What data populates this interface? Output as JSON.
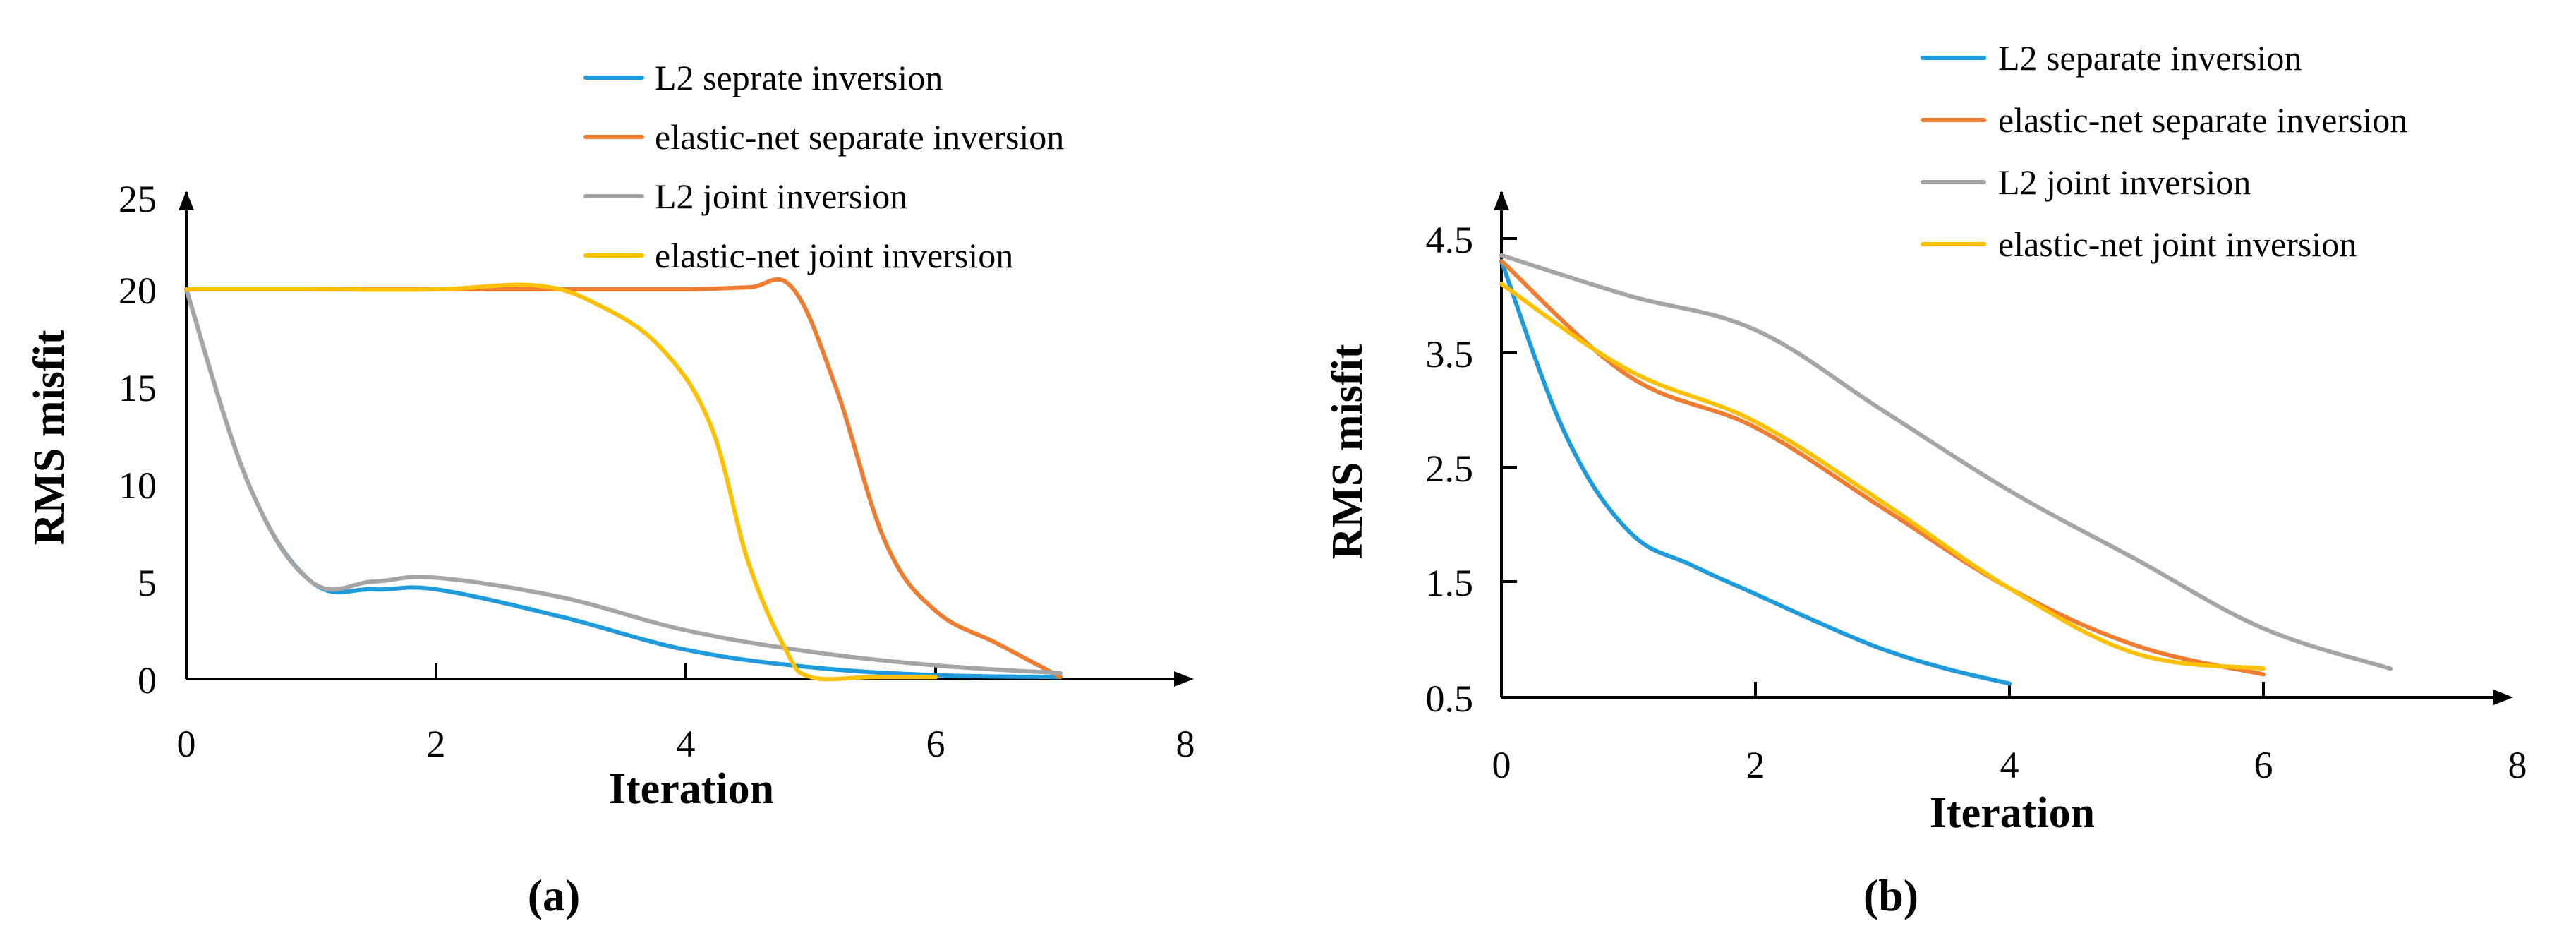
{
  "colors": {
    "l2_separate": "#1f9bdc",
    "enet_separate": "#ee7d31",
    "l2_joint": "#a5a5a5",
    "enet_joint": "#ffc000"
  },
  "chart_data": [
    {
      "type": "line",
      "panel_label": "(a)",
      "title": "",
      "xlabel": "Iteration",
      "ylabel": "RMS misfit",
      "xlim": [
        0,
        8
      ],
      "ylim": [
        0,
        25
      ],
      "xticks": [
        "0",
        "2",
        "4",
        "6",
        "8"
      ],
      "yticks": [
        "0",
        "5",
        "10",
        "15",
        "20",
        "25"
      ],
      "legend_position": "top-right",
      "series": [
        {
          "name": "L2 seprate inversion",
          "color_key": "l2_separate",
          "x": [
            0,
            0.5,
            1,
            1.5,
            2,
            3,
            4,
            5,
            6,
            7
          ],
          "y": [
            20,
            10,
            5,
            4.6,
            4.6,
            3.2,
            1.5,
            0.6,
            0.2,
            0.1
          ]
        },
        {
          "name": "elastic-net separate inversion",
          "color_key": "enet_separate",
          "x": [
            0,
            1,
            2,
            3,
            4,
            4.5,
            4.85,
            5.2,
            5.6,
            6,
            6.5,
            7
          ],
          "y": [
            20,
            20,
            20,
            20,
            20,
            20.1,
            20.1,
            15,
            7,
            3.5,
            1.8,
            0.1
          ]
        },
        {
          "name": "L2 joint inversion",
          "color_key": "l2_joint",
          "x": [
            0,
            0.5,
            1,
            1.5,
            2,
            3,
            4,
            5,
            6,
            7
          ],
          "y": [
            20,
            10,
            5,
            5,
            5.2,
            4.2,
            2.5,
            1.4,
            0.7,
            0.3
          ]
        },
        {
          "name": "elastic-net joint inversion",
          "color_key": "enet_joint",
          "x": [
            0,
            1,
            2,
            2.8,
            3.3,
            3.8,
            4.2,
            4.5,
            4.8,
            5,
            5.5,
            6
          ],
          "y": [
            20,
            20,
            20,
            20.2,
            19.2,
            17,
            13,
            6,
            1.5,
            0.1,
            0.1,
            0.1
          ]
        }
      ]
    },
    {
      "type": "line",
      "panel_label": "(b)",
      "title": "",
      "xlabel": "Iteration",
      "ylabel": "RMS misfit",
      "xlim": [
        0,
        8
      ],
      "ylim": [
        0.5,
        5
      ],
      "xticks": [
        "0",
        "2",
        "4",
        "6",
        "8"
      ],
      "yticks": [
        "0.5",
        "1.5",
        "2.5",
        "3.5",
        "4.5"
      ],
      "legend_position": "top-right",
      "series": [
        {
          "name": "L2 separate inversion",
          "color_key": "l2_separate",
          "x": [
            0,
            0.5,
            1,
            1.5,
            2,
            2.5,
            3,
            3.5,
            4
          ],
          "y": [
            4.3,
            2.8,
            1.95,
            1.65,
            1.4,
            1.15,
            0.92,
            0.75,
            0.62
          ]
        },
        {
          "name": "elastic-net separate inversion",
          "color_key": "enet_separate",
          "x": [
            0,
            1,
            2,
            3,
            4,
            5,
            6
          ],
          "y": [
            4.3,
            3.3,
            2.85,
            2.15,
            1.45,
            0.95,
            0.7
          ]
        },
        {
          "name": "L2 joint inversion",
          "color_key": "l2_joint",
          "x": [
            0,
            1,
            2,
            3,
            4,
            5,
            6,
            7
          ],
          "y": [
            4.35,
            4.0,
            3.7,
            3.0,
            2.3,
            1.7,
            1.1,
            0.75
          ]
        },
        {
          "name": "elastic-net joint inversion",
          "color_key": "enet_joint",
          "x": [
            0,
            1,
            2,
            3,
            4,
            5,
            6
          ],
          "y": [
            4.1,
            3.35,
            2.9,
            2.2,
            1.45,
            0.88,
            0.75
          ]
        }
      ]
    }
  ]
}
